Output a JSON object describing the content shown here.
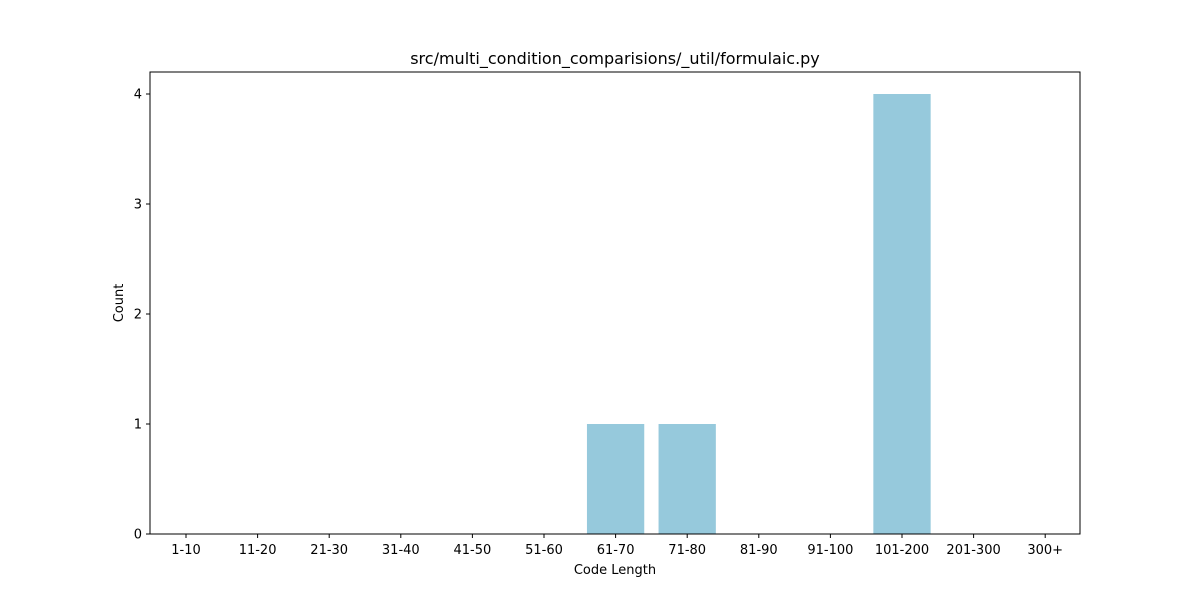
{
  "chart_data": {
    "type": "bar",
    "title": "src/multi_condition_comparisions/_util/formulaic.py",
    "xlabel": "Code Length",
    "ylabel": "Count",
    "categories": [
      "1-10",
      "11-20",
      "21-30",
      "31-40",
      "41-50",
      "51-60",
      "61-70",
      "71-80",
      "81-90",
      "91-100",
      "101-200",
      "201-300",
      "300+"
    ],
    "values": [
      0,
      0,
      0,
      0,
      0,
      0,
      1,
      1,
      0,
      0,
      4,
      0,
      0
    ],
    "ylim": [
      0,
      4.2
    ],
    "yticks": [
      "0",
      "1",
      "2",
      "3",
      "4"
    ],
    "bar_color": "#96c9dc",
    "grid": false,
    "legend": "none"
  }
}
